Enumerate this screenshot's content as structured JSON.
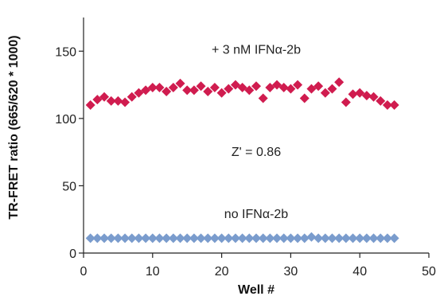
{
  "chart_data": {
    "type": "scatter",
    "title": "",
    "xlabel": "Well #",
    "ylabel": "TR-FRET ratio (665/620 * 1000)",
    "xlim": [
      0,
      50
    ],
    "ylim": [
      0,
      175
    ],
    "xticks": [
      0,
      10,
      20,
      30,
      40,
      50
    ],
    "yticks": [
      0,
      50,
      100,
      150
    ],
    "grid": false,
    "marker": "diamond",
    "series": [
      {
        "color": "#d01c4f",
        "x": [
          1,
          2,
          3,
          4,
          5,
          6,
          7,
          8,
          9,
          10,
          11,
          12,
          13,
          14,
          15,
          16,
          17,
          18,
          19,
          20,
          21,
          22,
          23,
          24,
          25,
          26,
          27,
          28,
          29,
          30,
          31,
          32,
          33,
          34,
          35,
          36,
          37,
          38,
          39,
          40,
          41,
          42,
          43,
          44,
          45
        ],
        "y": [
          110,
          114,
          116,
          113,
          113,
          112,
          116,
          119,
          121,
          123,
          123,
          120,
          123,
          126,
          121,
          121,
          124,
          120,
          123,
          119,
          122,
          125,
          123,
          121,
          124,
          115,
          123,
          125,
          123,
          122,
          125,
          115,
          122,
          124,
          119,
          122,
          127,
          112,
          118,
          119,
          117,
          116,
          113,
          110,
          110
        ]
      },
      {
        "color": "#7a9ccd",
        "x": [
          1,
          2,
          3,
          4,
          5,
          6,
          7,
          8,
          9,
          10,
          11,
          12,
          13,
          14,
          15,
          16,
          17,
          18,
          19,
          20,
          21,
          22,
          23,
          24,
          25,
          26,
          27,
          28,
          29,
          30,
          31,
          32,
          33,
          34,
          35,
          36,
          37,
          38,
          39,
          40,
          41,
          42,
          43,
          44,
          45
        ],
        "y": [
          11,
          11,
          11,
          11,
          11,
          11,
          11,
          11,
          11,
          11,
          11,
          11,
          11,
          11,
          11,
          11,
          11,
          11,
          11,
          11,
          11,
          11,
          11,
          11,
          11,
          11,
          11,
          11,
          11,
          11,
          11,
          11,
          12,
          11,
          11,
          11,
          11,
          11,
          11,
          11,
          11,
          11,
          11,
          11,
          11
        ]
      }
    ],
    "annotations": [
      {
        "text": "+ 3 nM IFNα-2b",
        "x": 25,
        "y": 148
      },
      {
        "text": "Z' = 0.86",
        "x": 25,
        "y": 72
      },
      {
        "text": "no IFNα-2b",
        "x": 25,
        "y": 26
      }
    ]
  }
}
